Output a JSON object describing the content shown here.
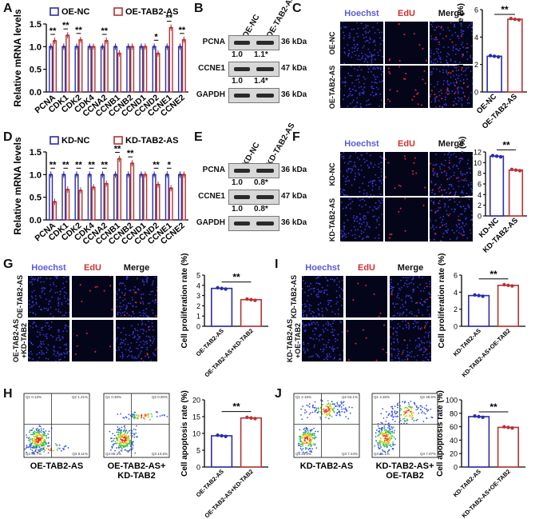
{
  "colors": {
    "blue": "#2c2ca8",
    "red": "#b83232",
    "hoechst": "#5a5ad8",
    "edu": "#d03030",
    "black": "#111111"
  },
  "panels": {
    "A": "A",
    "B": "B",
    "C": "C",
    "D": "D",
    "E": "E",
    "F": "F",
    "G": "G",
    "H": "H",
    "I": "I",
    "J": "J"
  },
  "micro_headers": {
    "hoechst": "Hoechst",
    "edu": "EdU",
    "merge": "Merge"
  },
  "chart_data": [
    {
      "id": "A",
      "type": "bar",
      "ylabel": "Relative mRNA levels",
      "ylim": [
        0,
        1.5
      ],
      "yticks": [
        "0.0",
        "0.5",
        "1.0",
        "1.5"
      ],
      "categories": [
        "PCNA",
        "CDK1",
        "CDK2",
        "CDK4",
        "CCNA2",
        "CCNB1",
        "CCNB2",
        "CCND1",
        "CCND2",
        "CCNE1",
        "CCNE2"
      ],
      "series": [
        {
          "name": "OE-NC",
          "values": [
            1,
            1,
            1,
            1,
            1,
            1,
            1,
            1,
            1,
            1,
            1
          ]
        },
        {
          "name": "OE-TAB2-AS",
          "values": [
            1.13,
            1.25,
            1.15,
            1.0,
            1.13,
            0.85,
            1.0,
            1.0,
            0.85,
            1.42,
            1.15
          ]
        }
      ],
      "sig": [
        "**",
        "**",
        "**",
        "",
        "**",
        "",
        "",
        "",
        "*",
        "**",
        "**"
      ]
    },
    {
      "id": "D",
      "type": "bar",
      "ylabel": "Relative mRNA levels",
      "ylim": [
        0,
        1.5
      ],
      "yticks": [
        "0.0",
        "0.5",
        "1.0",
        "1.5"
      ],
      "categories": [
        "PCNA",
        "CDK1",
        "CDK2",
        "CDK4",
        "CCNA2",
        "CCNB1",
        "CCNB2",
        "CCND1",
        "CCND2",
        "CCNE1",
        "CCNE2"
      ],
      "series": [
        {
          "name": "KD-NC",
          "values": [
            1,
            1,
            1,
            1,
            1,
            1,
            1,
            1,
            1,
            1,
            1
          ]
        },
        {
          "name": "KD-TAB2-AS",
          "values": [
            0.4,
            0.67,
            0.65,
            0.72,
            0.8,
            1.35,
            1.25,
            1.0,
            0.78,
            0.7,
            1.0
          ]
        }
      ],
      "sig": [
        "**",
        "**",
        "**",
        "**",
        "**",
        "**",
        "**",
        "",
        "**",
        "*",
        ""
      ]
    },
    {
      "id": "C",
      "type": "bar",
      "ylabel": "Cell proliferation rate (%)",
      "ylim": [
        0,
        6
      ],
      "yticks": [
        "0",
        "2",
        "4",
        "6"
      ],
      "categories": [
        "OE-NC",
        "OE-TAB2-AS"
      ],
      "values": [
        2.6,
        5.3
      ],
      "sig": "**"
    },
    {
      "id": "F",
      "type": "bar",
      "ylabel": "Cell proliferation rate (%)",
      "ylim": [
        0,
        12
      ],
      "yticks": [
        "0",
        "2",
        "4",
        "6",
        "8",
        "10",
        "12"
      ],
      "categories": [
        "KD-NC",
        "KD-TAB2-AS"
      ],
      "values": [
        11.2,
        8.6
      ],
      "sig": "**"
    },
    {
      "id": "G",
      "type": "bar",
      "ylabel": "Cell proliferation rate (%)",
      "ylim": [
        0,
        5
      ],
      "yticks": [
        "0",
        "1",
        "2",
        "3",
        "4",
        "5"
      ],
      "categories": [
        "OE-TAB2-AS",
        "OE-TAB2-AS+KD-TAB2"
      ],
      "values": [
        3.7,
        2.6
      ],
      "sig": "**"
    },
    {
      "id": "I",
      "type": "bar",
      "ylabel": "Cell proliferation rate (%)",
      "ylim": [
        0,
        6
      ],
      "yticks": [
        "0",
        "2",
        "4",
        "6"
      ],
      "categories": [
        "KD-TAB2-AS",
        "KD-TAB2-AS+OE-TAB2"
      ],
      "values": [
        3.6,
        4.8
      ],
      "sig": "**"
    },
    {
      "id": "H",
      "type": "bar",
      "ylabel": "Cell apoptosis rate (%)",
      "ylim": [
        0,
        20
      ],
      "yticks": [
        "0",
        "5",
        "10",
        "15",
        "20"
      ],
      "categories": [
        "OE-TAB2-AS",
        "OE-TAB2-AS+KD-TAB2"
      ],
      "values": [
        9.3,
        14.6
      ],
      "sig": "**"
    },
    {
      "id": "J",
      "type": "bar",
      "ylabel": "Cell apoptosis rate (%)",
      "ylim": [
        0,
        100
      ],
      "yticks": [
        "0",
        "20",
        "40",
        "60",
        "80",
        "100"
      ],
      "categories": [
        "KD-TAB2-AS",
        "KD-TAB2-AS+OE-TAB2"
      ],
      "values": [
        75,
        59
      ],
      "sig": "**"
    }
  ],
  "western": [
    {
      "id": "B",
      "lanes": [
        "OE-NC",
        "OE-TAB2-AS"
      ],
      "rows": [
        {
          "name": "PCNA",
          "kda": "36 kDa",
          "quant": [
            "1.0",
            "1.1*"
          ]
        },
        {
          "name": "CCNE1",
          "kda": "47 kDa",
          "quant": [
            "1.0",
            "1.4*"
          ]
        },
        {
          "name": "GAPDH",
          "kda": "36 kDa",
          "quant": null
        }
      ]
    },
    {
      "id": "E",
      "lanes": [
        "KD-NC",
        "KD-TAB2-AS"
      ],
      "rows": [
        {
          "name": "PCNA",
          "kda": "36 kDa",
          "quant": [
            "1.0",
            "0.8*"
          ]
        },
        {
          "name": "CCNE1",
          "kda": "47 kDa",
          "quant": [
            "1.0",
            "0.8*"
          ]
        },
        {
          "name": "GAPDH",
          "kda": "36 kDa",
          "quant": null
        }
      ]
    }
  ],
  "micro_rows": {
    "C": [
      "OE-NC",
      "OE-TAB2-AS"
    ],
    "F": [
      "KD-NC",
      "KD-TAB2-AS"
    ],
    "G": [
      "OE-TAB2-AS",
      "OE-TAB2-AS\n+KD-TAB2"
    ],
    "I": [
      "KD-TAB2-AS",
      "KD-TAB2-AS\n+OE-TAB2"
    ]
  },
  "flow": {
    "H": {
      "captions": [
        "OE-TAB2-AS",
        "OE-TAB2-AS+\nKD-TAB2"
      ],
      "quads": [
        [
          "Q1 0.13%",
          "Q2 1.21%",
          "Q4 90.7%",
          "Q3 8.11%"
        ],
        [
          "Q1 0.30%",
          "Q2 0.90%",
          "Q4 85.3%",
          "Q3 13.5%"
        ]
      ]
    },
    "J": {
      "captions": [
        "KD-TAB2-AS",
        "KD-TAB2-AS+\nOE-TAB2"
      ],
      "quads": [
        [
          "Q1 2.16%",
          "Q2 64.1%",
          "Q4 26.5%",
          "Q3 7.24%"
        ],
        [
          "Q1 3.35%",
          "Q2 48.5%",
          "Q4 41.1%",
          "Q3 7.07%"
        ]
      ]
    }
  }
}
